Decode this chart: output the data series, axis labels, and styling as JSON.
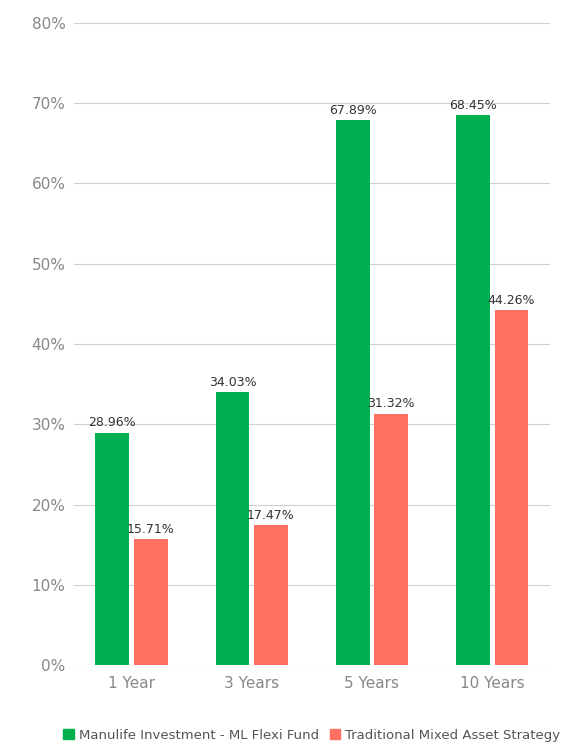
{
  "categories": [
    "1 Year",
    "3 Years",
    "5 Years",
    "10 Years"
  ],
  "series": [
    {
      "name": "Manulife Investment - ML Flexi Fund",
      "values": [
        28.96,
        34.03,
        67.89,
        68.45
      ],
      "color": "#00b050"
    },
    {
      "name": "Traditional Mixed Asset Strategy",
      "values": [
        15.71,
        17.47,
        31.32,
        44.26
      ],
      "color": "#ff7060"
    }
  ],
  "ylim": [
    0,
    80
  ],
  "yticks": [
    0,
    10,
    20,
    30,
    40,
    50,
    60,
    70,
    80
  ],
  "ytick_labels": [
    "0%",
    "10%",
    "20%",
    "30%",
    "40%",
    "50%",
    "60%",
    "70%",
    "80%"
  ],
  "background_color": "#ffffff",
  "grid_color": "#d0d0d0",
  "bar_width": 0.28,
  "bar_gap": 0.04,
  "tick_fontsize": 11,
  "legend_fontsize": 9.5,
  "value_label_fontsize": 9
}
